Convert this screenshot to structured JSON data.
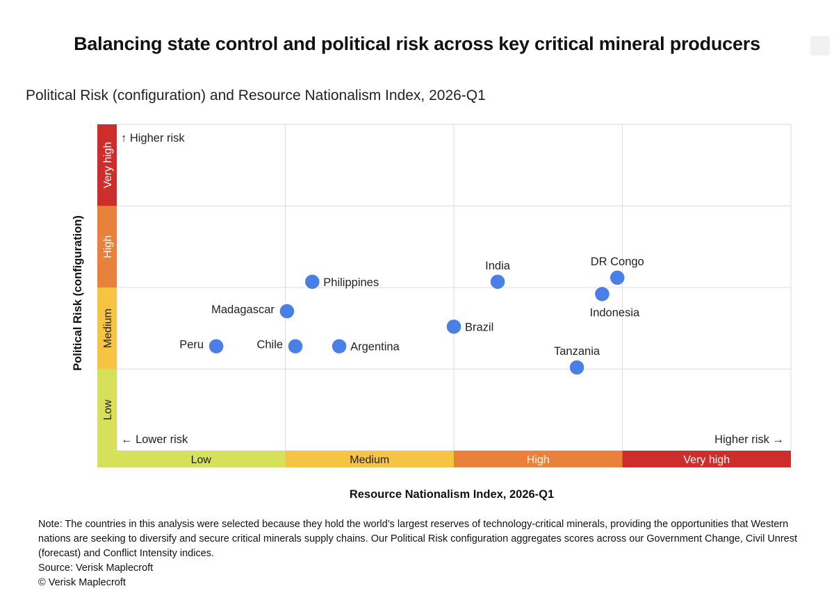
{
  "title": "Balancing state control and political risk across key critical mineral producers",
  "subtitle": "Political Risk (configuration) and Resource Nationalism Index, 2026-Q1",
  "chart_data": {
    "type": "scatter",
    "title": "Political Risk (configuration) and Resource Nationalism Index, 2026-Q1",
    "xlabel": "Resource Nationalism Index, 2026-Q1",
    "ylabel": "Political Risk (configuration)",
    "xlim": [
      0,
      4
    ],
    "ylim": [
      0,
      4
    ],
    "x_bands": [
      "Low",
      "Medium",
      "High",
      "Very high"
    ],
    "y_bands": [
      "Low",
      "Medium",
      "High",
      "Very high"
    ],
    "band_colors": [
      "#d6e05a",
      "#f6c443",
      "#e8813c",
      "#cd2e2b"
    ],
    "annotations": {
      "higher_risk_up": "↑ Higher risk",
      "lower_risk": "← Lower risk",
      "higher_risk_right": "Higher risk →"
    },
    "point_color": "#4a7fe8",
    "points": [
      {
        "label": "Peru",
        "x": 0.59,
        "y": 1.28,
        "label_pos": "left"
      },
      {
        "label": "Chile",
        "x": 1.06,
        "y": 1.28,
        "label_pos": "left"
      },
      {
        "label": "Argentina",
        "x": 1.32,
        "y": 1.28,
        "label_pos": "right"
      },
      {
        "label": "Madagascar",
        "x": 1.01,
        "y": 1.71,
        "label_pos": "left"
      },
      {
        "label": "Philippines",
        "x": 1.16,
        "y": 2.07,
        "label_pos": "right"
      },
      {
        "label": "Brazil",
        "x": 2.0,
        "y": 1.52,
        "label_pos": "right"
      },
      {
        "label": "India",
        "x": 2.26,
        "y": 2.07,
        "label_pos": "above"
      },
      {
        "label": "DR Congo",
        "x": 2.97,
        "y": 2.12,
        "label_pos": "above"
      },
      {
        "label": "Indonesia",
        "x": 2.88,
        "y": 1.92,
        "label_pos": "below"
      },
      {
        "label": "Tanzania",
        "x": 2.73,
        "y": 1.02,
        "label_pos": "above"
      }
    ]
  },
  "note": {
    "text": "Note: The countries in this analysis were selected because they hold the world’s largest reserves of technology-critical minerals, providing the opportunities that Western nations are seeking to diversify and secure critical minerals supply chains. Our Political Risk configuration aggregates scores across our Government Change, Civil Unrest (forecast) and Conflict Intensity indices.",
    "source": "Source: Verisk Maplecroft",
    "copyright": "© Verisk Maplecroft"
  }
}
